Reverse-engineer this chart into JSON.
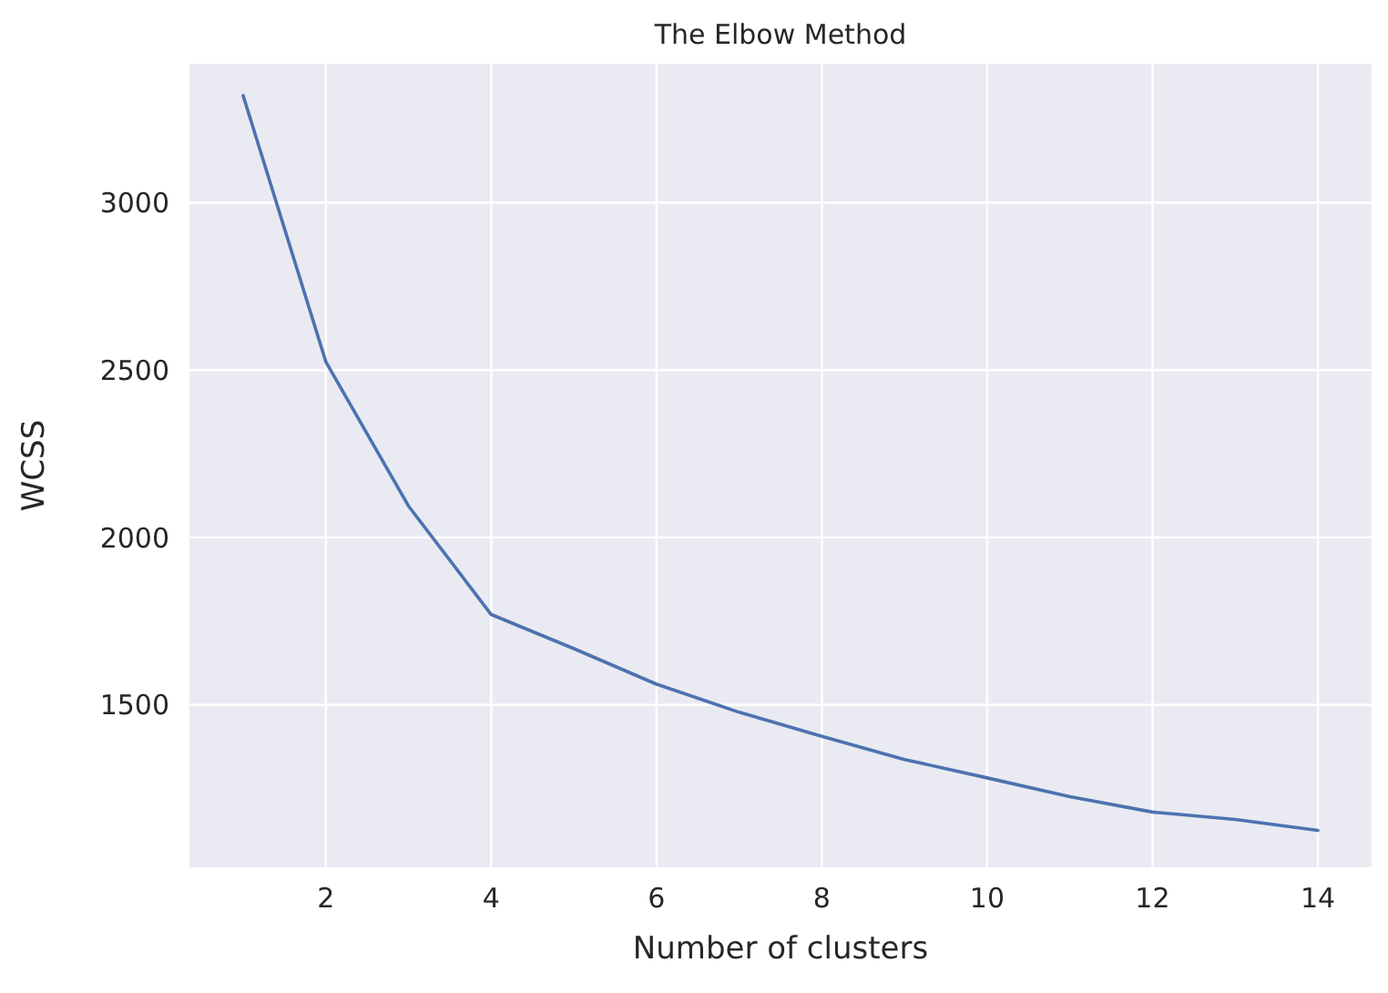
{
  "chart_data": {
    "type": "line",
    "title": "The Elbow Method",
    "xlabel": "Number of clusters",
    "ylabel": "WCSS",
    "x": [
      1,
      2,
      3,
      4,
      5,
      6,
      7,
      8,
      9,
      10,
      11,
      12,
      13,
      14
    ],
    "series": [
      {
        "color": "#4c72b0",
        "values": [
          3320,
          2525,
          2094,
          1770,
          1668,
          1562,
          1478,
          1406,
          1337,
          1282,
          1226,
          1180,
          1158,
          1125
        ]
      }
    ],
    "xlim": [
      0.35,
      14.65
    ],
    "xticks": [
      2,
      4,
      6,
      8,
      10,
      12,
      14
    ],
    "ylim": [
      1015,
      3415
    ],
    "yticks": [
      1500,
      2000,
      2500,
      3000
    ],
    "grid": true,
    "marker": "none",
    "line_style": "solid"
  }
}
